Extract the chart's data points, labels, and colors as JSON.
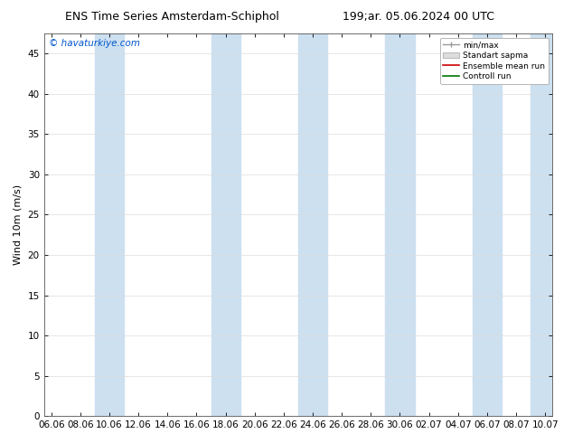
{
  "title_left": "ENS Time Series Amsterdam-Schiphol",
  "title_right": "199;ar. 05.06.2024 00 UTC",
  "ylabel": "Wind 10m (m/s)",
  "watermark": "© havaturkiye.com",
  "ylim": [
    0,
    47.5
  ],
  "yticks": [
    0,
    5,
    10,
    15,
    20,
    25,
    30,
    35,
    40,
    45
  ],
  "xtick_labels": [
    "06.06",
    "08.06",
    "10.06",
    "12.06",
    "14.06",
    "16.06",
    "18.06",
    "20.06",
    "22.06",
    "24.06",
    "26.06",
    "28.06",
    "30.06",
    "02.07",
    "04.07",
    "06.07",
    "08.07",
    "10.07"
  ],
  "xtick_positions": [
    0,
    2,
    4,
    6,
    8,
    10,
    12,
    14,
    16,
    18,
    20,
    22,
    24,
    26,
    28,
    30,
    32,
    34
  ],
  "band_ranges": [
    [
      3,
      5
    ],
    [
      11,
      13
    ],
    [
      17,
      19
    ],
    [
      23,
      25
    ],
    [
      29,
      31
    ],
    [
      33,
      35
    ]
  ],
  "legend_labels": [
    "min/max",
    "Standart sapma",
    "Ensemble mean run",
    "Controll run"
  ],
  "background_color": "#ffffff",
  "band_color": "#cce0f0",
  "title_fontsize": 9,
  "axis_fontsize": 7.5,
  "watermark_color": "#0055cc",
  "xlim_start": -0.5,
  "xlim_end": 34.5
}
